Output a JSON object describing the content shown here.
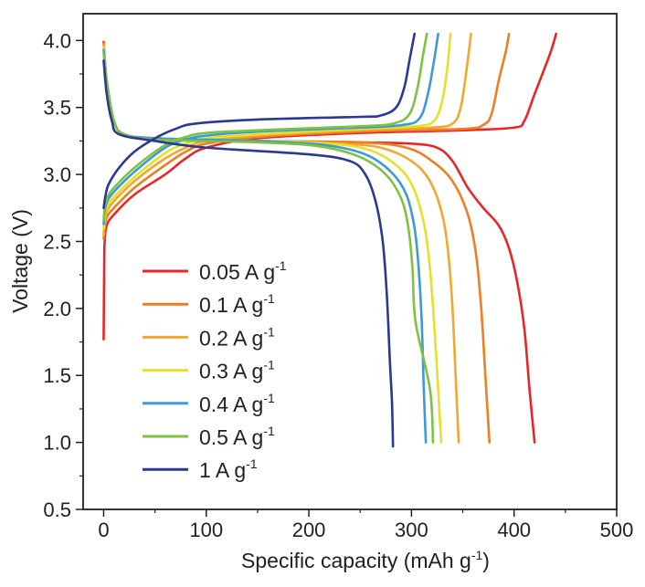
{
  "chart_data": {
    "type": "line",
    "title": "",
    "xlabel": "Specific capacity (mAh g",
    "xlabel_sup": "-1",
    "xlabel_tail": ")",
    "ylabel": "Voltage (V)",
    "xlim": [
      -20,
      500
    ],
    "ylim": [
      0.5,
      4.2
    ],
    "x_ticks": [
      0,
      100,
      200,
      300,
      400,
      500
    ],
    "y_ticks": [
      0.5,
      1.0,
      1.5,
      2.0,
      2.5,
      3.0,
      3.5,
      4.0
    ],
    "x_tick_labels": [
      "0",
      "100",
      "200",
      "300",
      "400",
      "500"
    ],
    "y_tick_labels": [
      "0.5",
      "1.0",
      "1.5",
      "2.0",
      "2.5",
      "3.0",
      "3.5",
      "4.0"
    ],
    "grid": false,
    "legend_position": "bottom-left",
    "series": [
      {
        "name": "0.05 A g",
        "sup": "-1",
        "color": "#e8262a",
        "charge": [
          [
            0,
            1.77
          ],
          [
            0.5,
            2.3
          ],
          [
            1,
            2.5
          ],
          [
            3,
            2.62
          ],
          [
            10,
            2.7
          ],
          [
            30,
            2.85
          ],
          [
            60,
            3.0
          ],
          [
            80,
            3.12
          ],
          [
            100,
            3.2
          ],
          [
            150,
            3.27
          ],
          [
            250,
            3.31
          ],
          [
            350,
            3.33
          ],
          [
            400,
            3.35
          ],
          [
            410,
            3.4
          ],
          [
            420,
            3.6
          ],
          [
            435,
            3.9
          ],
          [
            441,
            4.05
          ]
        ],
        "discharge": [
          [
            0,
            3.99
          ],
          [
            3,
            3.7
          ],
          [
            10,
            3.4
          ],
          [
            20,
            3.3
          ],
          [
            50,
            3.27
          ],
          [
            150,
            3.25
          ],
          [
            250,
            3.24
          ],
          [
            300,
            3.23
          ],
          [
            325,
            3.2
          ],
          [
            340,
            3.1
          ],
          [
            355,
            2.9
          ],
          [
            370,
            2.75
          ],
          [
            385,
            2.62
          ],
          [
            395,
            2.45
          ],
          [
            403,
            2.2
          ],
          [
            410,
            1.85
          ],
          [
            415,
            1.4
          ],
          [
            420,
            1.0
          ]
        ]
      },
      {
        "name": "0.1 A g",
        "sup": "-1",
        "color": "#ef7d22",
        "charge": [
          [
            0,
            2.52
          ],
          [
            1,
            2.6
          ],
          [
            3,
            2.68
          ],
          [
            10,
            2.75
          ],
          [
            30,
            2.9
          ],
          [
            60,
            3.07
          ],
          [
            80,
            3.17
          ],
          [
            100,
            3.23
          ],
          [
            150,
            3.28
          ],
          [
            250,
            3.32
          ],
          [
            350,
            3.34
          ],
          [
            370,
            3.37
          ],
          [
            378,
            3.45
          ],
          [
            385,
            3.7
          ],
          [
            392,
            3.92
          ],
          [
            395,
            4.05
          ]
        ],
        "discharge": [
          [
            0,
            3.98
          ],
          [
            3,
            3.7
          ],
          [
            10,
            3.4
          ],
          [
            20,
            3.3
          ],
          [
            50,
            3.27
          ],
          [
            150,
            3.25
          ],
          [
            250,
            3.24
          ],
          [
            295,
            3.2
          ],
          [
            320,
            3.1
          ],
          [
            340,
            2.95
          ],
          [
            355,
            2.7
          ],
          [
            363,
            2.4
          ],
          [
            368,
            2.0
          ],
          [
            372,
            1.5
          ],
          [
            376,
            1.0
          ]
        ]
      },
      {
        "name": "0.2 A g",
        "sup": "-1",
        "color": "#f2a72e",
        "charge": [
          [
            0,
            2.55
          ],
          [
            1,
            2.64
          ],
          [
            3,
            2.72
          ],
          [
            10,
            2.8
          ],
          [
            30,
            2.95
          ],
          [
            60,
            3.12
          ],
          [
            80,
            3.2
          ],
          [
            100,
            3.25
          ],
          [
            150,
            3.29
          ],
          [
            250,
            3.33
          ],
          [
            320,
            3.35
          ],
          [
            340,
            3.38
          ],
          [
            348,
            3.5
          ],
          [
            354,
            3.8
          ],
          [
            358,
            4.05
          ]
        ],
        "discharge": [
          [
            0,
            3.97
          ],
          [
            3,
            3.7
          ],
          [
            10,
            3.4
          ],
          [
            20,
            3.3
          ],
          [
            50,
            3.27
          ],
          [
            150,
            3.25
          ],
          [
            230,
            3.23
          ],
          [
            270,
            3.2
          ],
          [
            300,
            3.1
          ],
          [
            318,
            2.95
          ],
          [
            330,
            2.7
          ],
          [
            336,
            2.4
          ],
          [
            340,
            2.0
          ],
          [
            343,
            1.5
          ],
          [
            346,
            1.0
          ]
        ]
      },
      {
        "name": "0.3 A g",
        "sup": "-1",
        "color": "#e5e02a",
        "charge": [
          [
            0,
            2.6
          ],
          [
            1,
            2.68
          ],
          [
            3,
            2.75
          ],
          [
            10,
            2.83
          ],
          [
            30,
            2.98
          ],
          [
            60,
            3.16
          ],
          [
            80,
            3.23
          ],
          [
            100,
            3.27
          ],
          [
            150,
            3.3
          ],
          [
            250,
            3.34
          ],
          [
            305,
            3.36
          ],
          [
            322,
            3.4
          ],
          [
            330,
            3.55
          ],
          [
            335,
            3.8
          ],
          [
            338,
            4.05
          ]
        ],
        "discharge": [
          [
            0,
            3.95
          ],
          [
            3,
            3.7
          ],
          [
            10,
            3.4
          ],
          [
            20,
            3.3
          ],
          [
            50,
            3.27
          ],
          [
            150,
            3.25
          ],
          [
            220,
            3.23
          ],
          [
            260,
            3.18
          ],
          [
            288,
            3.05
          ],
          [
            303,
            2.88
          ],
          [
            313,
            2.6
          ],
          [
            318,
            2.3
          ],
          [
            322,
            1.9
          ],
          [
            326,
            1.4
          ],
          [
            329,
            1.0
          ]
        ]
      },
      {
        "name": "0.4 A g",
        "sup": "-1",
        "color": "#3c9ad6",
        "charge": [
          [
            0,
            2.63
          ],
          [
            1,
            2.72
          ],
          [
            3,
            2.79
          ],
          [
            10,
            2.87
          ],
          [
            30,
            3.02
          ],
          [
            60,
            3.2
          ],
          [
            80,
            3.26
          ],
          [
            100,
            3.29
          ],
          [
            150,
            3.32
          ],
          [
            250,
            3.35
          ],
          [
            292,
            3.37
          ],
          [
            308,
            3.42
          ],
          [
            316,
            3.6
          ],
          [
            322,
            3.85
          ],
          [
            326,
            4.05
          ]
        ],
        "discharge": [
          [
            0,
            3.93
          ],
          [
            3,
            3.7
          ],
          [
            10,
            3.4
          ],
          [
            20,
            3.3
          ],
          [
            50,
            3.27
          ],
          [
            150,
            3.25
          ],
          [
            215,
            3.22
          ],
          [
            255,
            3.15
          ],
          [
            280,
            3.02
          ],
          [
            295,
            2.85
          ],
          [
            303,
            2.6
          ],
          [
            307,
            2.3
          ],
          [
            310,
            1.9
          ],
          [
            312,
            1.4
          ],
          [
            314,
            1.0
          ]
        ]
      },
      {
        "name": "0.5 A g",
        "sup": "-1",
        "color": "#7fc242",
        "charge": [
          [
            0,
            2.66
          ],
          [
            1,
            2.75
          ],
          [
            3,
            2.82
          ],
          [
            10,
            2.9
          ],
          [
            30,
            3.05
          ],
          [
            60,
            3.22
          ],
          [
            80,
            3.28
          ],
          [
            100,
            3.31
          ],
          [
            150,
            3.33
          ],
          [
            250,
            3.36
          ],
          [
            282,
            3.38
          ],
          [
            298,
            3.45
          ],
          [
            306,
            3.65
          ],
          [
            311,
            3.88
          ],
          [
            315,
            4.05
          ]
        ],
        "discharge": [
          [
            0,
            3.9
          ],
          [
            3,
            3.7
          ],
          [
            10,
            3.4
          ],
          [
            20,
            3.3
          ],
          [
            50,
            3.26
          ],
          [
            150,
            3.24
          ],
          [
            210,
            3.21
          ],
          [
            250,
            3.13
          ],
          [
            275,
            3.0
          ],
          [
            290,
            2.82
          ],
          [
            297,
            2.6
          ],
          [
            301,
            2.3
          ],
          [
            304,
            1.9
          ],
          [
            318,
            1.4
          ],
          [
            321,
            1.0
          ]
        ]
      },
      {
        "name": "1 A g",
        "sup": "-1",
        "color": "#2b3990",
        "charge": [
          [
            0,
            2.75
          ],
          [
            2,
            2.85
          ],
          [
            5,
            2.93
          ],
          [
            15,
            3.05
          ],
          [
            30,
            3.17
          ],
          [
            50,
            3.27
          ],
          [
            70,
            3.34
          ],
          [
            90,
            3.38
          ],
          [
            150,
            3.41
          ],
          [
            250,
            3.43
          ],
          [
            270,
            3.44
          ],
          [
            285,
            3.5
          ],
          [
            293,
            3.65
          ],
          [
            298,
            3.85
          ],
          [
            303,
            4.05
          ]
        ],
        "discharge": [
          [
            0,
            3.85
          ],
          [
            3,
            3.6
          ],
          [
            8,
            3.4
          ],
          [
            15,
            3.3
          ],
          [
            50,
            3.25
          ],
          [
            100,
            3.2
          ],
          [
            200,
            3.15
          ],
          [
            240,
            3.1
          ],
          [
            255,
            3.0
          ],
          [
            265,
            2.8
          ],
          [
            272,
            2.5
          ],
          [
            276,
            2.1
          ],
          [
            279,
            1.6
          ],
          [
            281,
            1.3
          ],
          [
            282,
            0.97
          ]
        ]
      }
    ]
  }
}
